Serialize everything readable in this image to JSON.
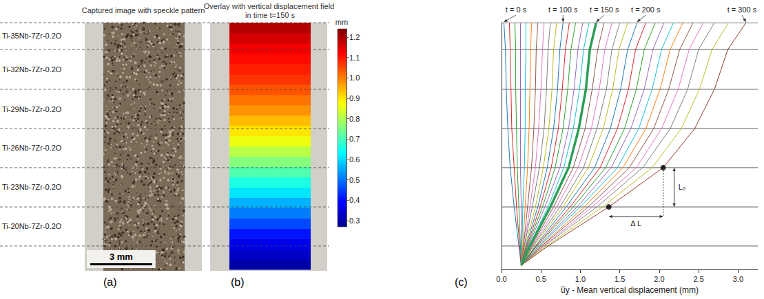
{
  "compositions": [
    "Ti-35Nb-7Zr-0.2O",
    "Ti-32Nb-7Zr-0.2O",
    "Ti-29Nb-7Zr-0.2O",
    "Ti-26Nb-7Zr-0.2O",
    "Ti-23Nb-7Zr-0.2O",
    "Ti-20Nb-7Zr-0.2O"
  ],
  "panel_letters": [
    "(a)",
    "(b)",
    "(c)"
  ],
  "image_panel": {
    "title": "Captured image with speckle pattern",
    "scale_bar": {
      "value": 3,
      "label": "3 mm"
    }
  },
  "field_panel": {
    "title": "Overlay with vertical displacement field in time t=150 s",
    "y": [
      0.25,
      0.75,
      1.25,
      1.75,
      2.25,
      2.75,
      3.25,
      3.75,
      4.25,
      4.75,
      5.25,
      5.75,
      6.25,
      6.75,
      7.25,
      7.75,
      8.25,
      8.75,
      9.25,
      9.75,
      10.25,
      10.75,
      11.25,
      11.75
    ],
    "values": [
      0.3,
      0.33,
      0.37,
      0.41,
      0.46,
      0.51,
      0.56,
      0.61,
      0.66,
      0.71,
      0.76,
      0.81,
      0.86,
      0.9,
      0.94,
      0.98,
      1.01,
      1.04,
      1.07,
      1.09,
      1.11,
      1.13,
      1.16,
      1.19
    ],
    "colorbar": {
      "label": "mm",
      "range": [
        0.27,
        1.24
      ],
      "ticks": [
        0.3,
        0.4,
        0.5,
        0.6,
        0.7,
        0.8,
        0.9,
        {
          "value": 1,
          "label": "1.0"
        },
        1.1,
        1.2
      ]
    }
  },
  "chart_data": {
    "type": "line",
    "xlabel": "u̅y - Mean vertical displacement (mm)",
    "xlim": [
      0,
      3.25
    ],
    "xticks": [
      {
        "value": 0,
        "label": "0.0"
      },
      0.5,
      {
        "value": 1,
        "label": "1.0"
      },
      1.5,
      {
        "value": 2,
        "label": "2.0"
      },
      2.5,
      {
        "value": 3,
        "label": "3.0"
      }
    ],
    "ylim": [
      0,
      12
    ],
    "tick_labels": "x",
    "grid": false,
    "y": [
      0.2,
      1.14,
      3.04,
      4.95,
      6.85,
      8.76,
      10.7,
      12
    ],
    "boundaries": [
      12,
      10.7,
      8.76,
      6.85,
      4.95,
      3.04,
      1.14
    ],
    "series": [
      {
        "label": "t = 0 s",
        "color": "#1f77b4",
        "values": [
          0.25,
          0.22,
          0.16,
          0.11,
          0.08,
          0.06,
          0.05,
          0.03
        ]
      },
      {
        "color": "#d62728",
        "values": [
          0.25,
          0.23,
          0.19,
          0.16,
          0.13,
          0.12,
          0.11,
          0.1
        ]
      },
      {
        "color": "#2ca02c",
        "values": [
          0.25,
          0.24,
          0.22,
          0.2,
          0.19,
          0.18,
          0.18,
          0.17
        ]
      },
      {
        "color": "#9467bd",
        "values": [
          0.25,
          0.25,
          0.25,
          0.24,
          0.24,
          0.24,
          0.24,
          0.24
        ]
      },
      {
        "color": "#17becf",
        "values": [
          0.25,
          0.26,
          0.27,
          0.29,
          0.3,
          0.3,
          0.31,
          0.31
        ]
      },
      {
        "color": "#ff7f0e",
        "values": [
          0.25,
          0.27,
          0.3,
          0.33,
          0.35,
          0.36,
          0.37,
          0.38
        ]
      },
      {
        "color": "#8c564b",
        "values": [
          0.25,
          0.28,
          0.33,
          0.38,
          0.41,
          0.43,
          0.44,
          0.46
        ]
      },
      {
        "color": "#e377c2",
        "values": [
          0.25,
          0.29,
          0.36,
          0.43,
          0.47,
          0.5,
          0.52,
          0.54
        ]
      },
      {
        "color": "#7f7f7f",
        "values": [
          0.25,
          0.29,
          0.39,
          0.48,
          0.54,
          0.57,
          0.59,
          0.62
        ]
      },
      {
        "color": "#bcbd22",
        "values": [
          0.25,
          0.3,
          0.43,
          0.53,
          0.6,
          0.64,
          0.66,
          0.7
        ]
      },
      {
        "label": "t = 100 s",
        "color": "#1f77b4",
        "values": [
          0.25,
          0.31,
          0.46,
          0.58,
          0.66,
          0.71,
          0.74,
          0.78
        ]
      },
      {
        "color": "#d62728",
        "values": [
          0.25,
          0.32,
          0.49,
          0.63,
          0.72,
          0.77,
          0.81,
          0.86
        ]
      },
      {
        "color": "#2ca02c",
        "values": [
          0.25,
          0.33,
          0.52,
          0.68,
          0.78,
          0.84,
          0.88,
          0.94
        ]
      },
      {
        "color": "#9467bd",
        "values": [
          0.25,
          0.34,
          0.55,
          0.74,
          0.85,
          0.92,
          0.97,
          1.03
        ]
      },
      {
        "color": "#17becf",
        "values": [
          0.25,
          0.35,
          0.59,
          0.79,
          0.91,
          0.99,
          1.04,
          1.11
        ]
      },
      {
        "label": "t = 150 s",
        "color": "#2e9d57",
        "line_style": "bold",
        "values": [
          0.25,
          0.36,
          0.62,
          0.85,
          0.98,
          1.07,
          1.12,
          1.2
        ]
      },
      {
        "color": "#8c564b",
        "values": [
          0.25,
          0.38,
          0.66,
          0.91,
          1.06,
          1.15,
          1.22,
          1.3
        ]
      },
      {
        "color": "#e377c2",
        "values": [
          0.25,
          0.39,
          0.7,
          0.97,
          1.14,
          1.24,
          1.31,
          1.4
        ]
      },
      {
        "color": "#7f7f7f",
        "values": [
          0.25,
          0.4,
          0.74,
          1.04,
          1.21,
          1.33,
          1.4,
          1.5
        ]
      },
      {
        "color": "#bcbd22",
        "values": [
          0.25,
          0.41,
          0.78,
          1.1,
          1.29,
          1.41,
          1.49,
          1.6
        ]
      },
      {
        "label": "t = 200 s",
        "color": "#1f77b4",
        "values": [
          0.25,
          0.43,
          0.82,
          1.18,
          1.38,
          1.51,
          1.6,
          1.72
        ]
      },
      {
        "color": "#d62728",
        "values": [
          0.25,
          0.44,
          0.87,
          1.25,
          1.47,
          1.61,
          1.7,
          1.83
        ]
      },
      {
        "color": "#2ca02c",
        "values": [
          0.25,
          0.45,
          0.91,
          1.32,
          1.56,
          1.71,
          1.81,
          1.95
        ]
      },
      {
        "color": "#9467bd",
        "values": [
          0.25,
          0.47,
          0.96,
          1.39,
          1.64,
          1.81,
          1.92,
          2.06
        ]
      },
      {
        "color": "#17becf",
        "values": [
          0.25,
          0.48,
          1.0,
          1.47,
          1.74,
          1.91,
          2.03,
          2.18
        ]
      },
      {
        "color": "#ff7f0e",
        "values": [
          0.25,
          0.5,
          1.05,
          1.54,
          1.83,
          2.01,
          2.14,
          2.3
        ]
      },
      {
        "color": "#8c564b",
        "values": [
          0.25,
          0.51,
          1.1,
          1.62,
          1.93,
          2.12,
          2.26,
          2.43
        ]
      },
      {
        "color": "#e377c2",
        "values": [
          0.25,
          0.53,
          1.15,
          1.71,
          2.03,
          2.24,
          2.38,
          2.56
        ]
      },
      {
        "color": "#7f7f7f",
        "values": [
          0.25,
          0.54,
          1.21,
          1.79,
          2.14,
          2.36,
          2.5,
          2.7
        ]
      },
      {
        "color": "#bcbd22",
        "values": [
          0.25,
          0.57,
          1.28,
          1.91,
          2.28,
          2.51,
          2.67,
          2.88
        ]
      },
      {
        "label": "t = 300 s",
        "color": "#8c3b2b",
        "values": [
          0.25,
          0.59,
          1.36,
          2.05,
          2.45,
          2.7,
          2.87,
          3.1
        ]
      }
    ],
    "markers": {
      "marker": "circle",
      "points": [
        [
          1.36,
          3.04
        ],
        [
          2.05,
          4.95
        ]
      ],
      "horizontal_label": "Δ L",
      "vertical_label": "L₀"
    }
  }
}
